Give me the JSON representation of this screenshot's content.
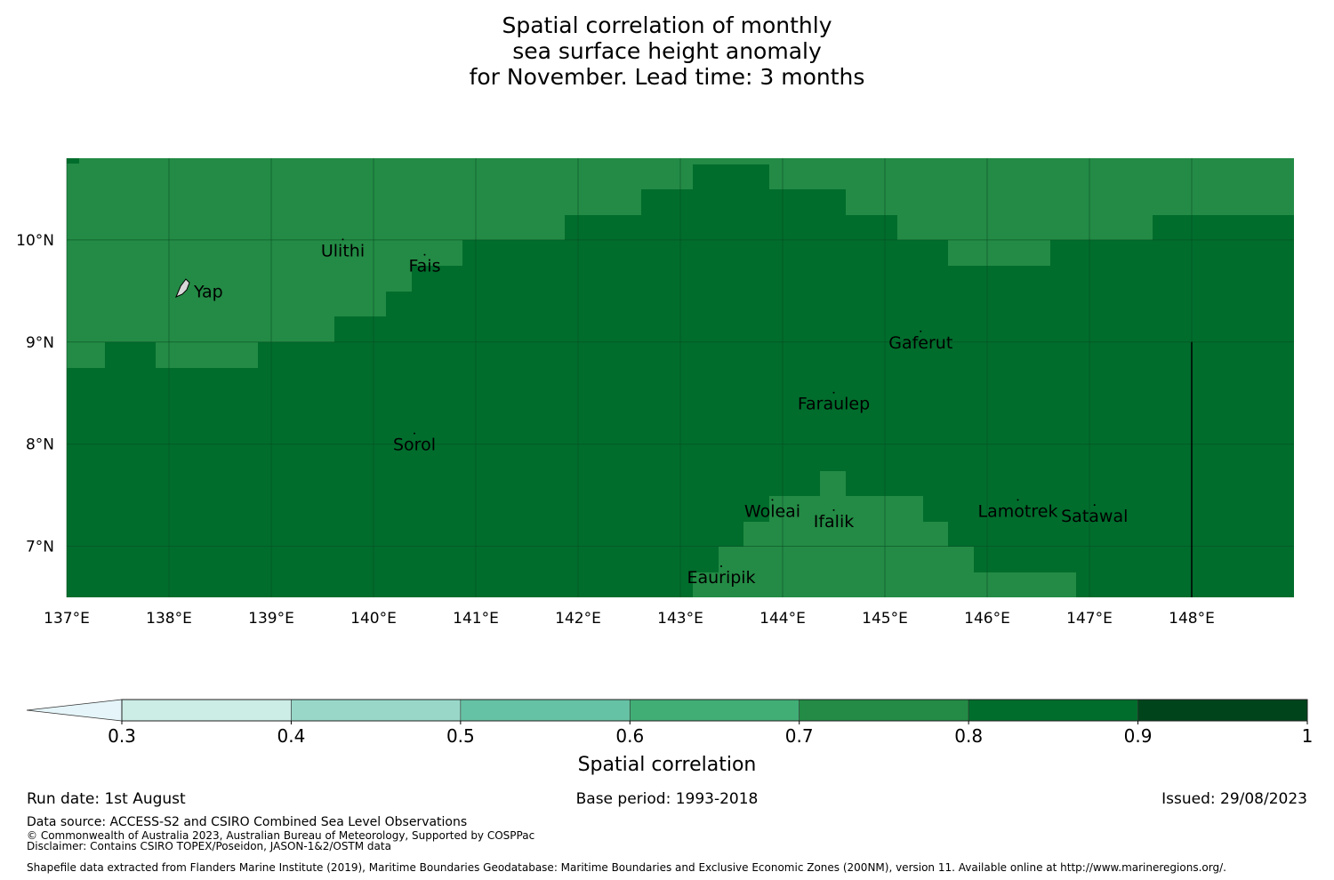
{
  "title": {
    "line1": "Spatial correlation of monthly",
    "line2": "sea surface height anomaly",
    "line3": "for November. Lead time: 3 months"
  },
  "map": {
    "lon_range": [
      137.0,
      149.0
    ],
    "lat_range": [
      6.5,
      10.8
    ],
    "lon_ticks": [
      "137°E",
      "138°E",
      "139°E",
      "140°E",
      "141°E",
      "142°E",
      "143°E",
      "144°E",
      "145°E",
      "146°E",
      "147°E",
      "148°E"
    ],
    "lat_ticks": [
      "10°N",
      "9°N",
      "8°N",
      "7°N"
    ],
    "lat_tick_values": [
      10,
      9,
      8,
      7
    ],
    "lon_tick_values": [
      137,
      138,
      139,
      140,
      141,
      142,
      143,
      144,
      145,
      146,
      147,
      148
    ],
    "grid": true,
    "boundary_line": {
      "lon": 148.0,
      "lat_from": 6.5,
      "lat_to": 9.0
    },
    "colors": {
      "band_0_7_0_8": "#238b45",
      "band_0_8_0_9": "#006d2c",
      "gridline": "#0a4a22",
      "boundary": "#000000"
    },
    "places": [
      {
        "name": "Ulithi",
        "lon": 139.7,
        "lat": 9.9
      },
      {
        "name": "Fais",
        "lon": 140.5,
        "lat": 9.75
      },
      {
        "name": "Yap",
        "lon": 138.1,
        "lat": 9.5
      },
      {
        "name": "Gaferut",
        "lon": 145.35,
        "lat": 9.0
      },
      {
        "name": "Faraulep",
        "lon": 144.5,
        "lat": 8.4
      },
      {
        "name": "Sorol",
        "lon": 140.4,
        "lat": 8.0
      },
      {
        "name": "Woleai",
        "lon": 143.9,
        "lat": 7.35
      },
      {
        "name": "Ifalik",
        "lon": 144.5,
        "lat": 7.25
      },
      {
        "name": "Lamotrek",
        "lon": 146.3,
        "lat": 7.35
      },
      {
        "name": "Satawal",
        "lon": 147.05,
        "lat": 7.3
      },
      {
        "name": "Eauripik",
        "lon": 143.4,
        "lat": 6.7
      }
    ]
  },
  "colorbar": {
    "label": "Spatial correlation",
    "ticks": [
      "0.3",
      "0.4",
      "0.5",
      "0.6",
      "0.7",
      "0.8",
      "0.9",
      "1"
    ],
    "colors": [
      "#e5f5f9",
      "#ccece6",
      "#99d8c9",
      "#66c2a4",
      "#41ae76",
      "#238b45",
      "#006d2c",
      "#00441b"
    ]
  },
  "footer": {
    "run_date": "Run date: 1st August",
    "base_period": "Base period: 1993-2018",
    "issued": "Issued: 29/08/2023",
    "data_source": "Data source: ACCESS-S2 and CSIRO Combined Sea Level Observations",
    "copyright": "© Commonwealth of Australia 2023, Australian Bureau of Meteorology, Supported by COSPPac",
    "disclaimer": "Disclaimer: Contains CSIRO TOPEX/Poseidon, JASON-1&2/OSTM data",
    "shapefile": "Shapefile data extracted from Flanders Marine Institute (2019), Maritime Boundaries Geodatabase: Maritime Boundaries and Exclusive Economic Zones (200NM), version 11. Available online at http://www.marineregions.org/."
  }
}
